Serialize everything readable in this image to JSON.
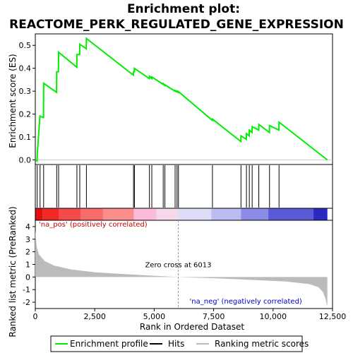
{
  "chart_data": {
    "type": "line",
    "title_line1": "Enrichment plot:",
    "title_line2": "REACTOME_PERK_REGULATED_GENE_EXPRESSION",
    "xlabel": "Rank in Ordered Dataset",
    "ylabel_top": "Enrichment score (ES)",
    "ylabel_bottom": "Ranked list metric (PreRanked)",
    "xlim": [
      0,
      12500
    ],
    "x_ticks": [
      0,
      2500,
      5000,
      7500,
      10000,
      12500
    ],
    "x_tick_labels": [
      "0",
      "2,500",
      "5,000",
      "7,500",
      "10,000",
      "12,500"
    ],
    "es_ylim": [
      -0.02,
      0.55
    ],
    "es_ticks": [
      0.0,
      0.1,
      0.2,
      0.3,
      0.4,
      0.5
    ],
    "es_tick_labels": [
      "0.0",
      "0.1",
      "0.2",
      "0.3",
      "0.4",
      "0.5"
    ],
    "metric_ylim": [
      -2.5,
      4.5
    ],
    "metric_ticks": [
      4,
      3,
      2,
      1,
      0,
      -1,
      -2
    ],
    "metric_tick_labels": [
      "4",
      "3",
      "2",
      "1",
      "0",
      "-1",
      "-2"
    ],
    "n_genes": 12284,
    "hits": [
      80,
      200,
      350,
      900,
      980,
      1750,
      1870,
      2150,
      4130,
      4170,
      4800,
      4900,
      5380,
      5450,
      5880,
      5960,
      6020,
      7450,
      8650,
      8880,
      9000,
      9120,
      9400,
      9850,
      10250
    ],
    "es_series": [
      [
        0,
        0.0
      ],
      [
        75,
        -0.005
      ],
      [
        80,
        0.02
      ],
      [
        195,
        0.195
      ],
      [
        200,
        0.19
      ],
      [
        345,
        0.185
      ],
      [
        350,
        0.335
      ],
      [
        895,
        0.295
      ],
      [
        900,
        0.385
      ],
      [
        975,
        0.385
      ],
      [
        980,
        0.47
      ],
      [
        1745,
        0.405
      ],
      [
        1750,
        0.46
      ],
      [
        1865,
        0.46
      ],
      [
        1870,
        0.505
      ],
      [
        2145,
        0.485
      ],
      [
        2150,
        0.53
      ],
      [
        4125,
        0.37
      ],
      [
        4130,
        0.385
      ],
      [
        4165,
        0.385
      ],
      [
        4170,
        0.4
      ],
      [
        4795,
        0.355
      ],
      [
        4800,
        0.365
      ],
      [
        4895,
        0.355
      ],
      [
        4900,
        0.362
      ],
      [
        5375,
        0.33
      ],
      [
        5380,
        0.333
      ],
      [
        5445,
        0.325
      ],
      [
        5450,
        0.328
      ],
      [
        5875,
        0.3
      ],
      [
        5880,
        0.303
      ],
      [
        5955,
        0.297
      ],
      [
        5960,
        0.3
      ],
      [
        6015,
        0.295
      ],
      [
        6020,
        0.298
      ],
      [
        7445,
        0.173
      ],
      [
        7450,
        0.178
      ],
      [
        8645,
        0.08
      ],
      [
        8650,
        0.105
      ],
      [
        8875,
        0.09
      ],
      [
        8880,
        0.115
      ],
      [
        8995,
        0.105
      ],
      [
        9000,
        0.13
      ],
      [
        9115,
        0.12
      ],
      [
        9120,
        0.145
      ],
      [
        9395,
        0.13
      ],
      [
        9400,
        0.155
      ],
      [
        9845,
        0.12
      ],
      [
        9850,
        0.15
      ],
      [
        10245,
        0.13
      ],
      [
        10250,
        0.165
      ],
      [
        12284,
        0.0
      ]
    ],
    "metric_series": [
      [
        0,
        3.7
      ],
      [
        60,
        2.4
      ],
      [
        150,
        1.8
      ],
      [
        400,
        1.25
      ],
      [
        800,
        0.9
      ],
      [
        1500,
        0.6
      ],
      [
        2500,
        0.38
      ],
      [
        4000,
        0.2
      ],
      [
        5000,
        0.1
      ],
      [
        6013,
        0.0
      ],
      [
        7500,
        -0.1
      ],
      [
        9000,
        -0.22
      ],
      [
        10500,
        -0.35
      ],
      [
        11500,
        -0.55
      ],
      [
        11900,
        -0.8
      ],
      [
        12100,
        -1.2
      ],
      [
        12200,
        -1.7
      ],
      [
        12260,
        -2.2
      ],
      [
        12284,
        -2.3
      ]
    ],
    "heatmap_bands": [
      {
        "x0": 0,
        "x1": 300,
        "color": "#e01010"
      },
      {
        "x0": 300,
        "x1": 1000,
        "color": "#f02828"
      },
      {
        "x0": 1000,
        "x1": 1900,
        "color": "#f54a4a"
      },
      {
        "x0": 1900,
        "x1": 2850,
        "color": "#f86c6c"
      },
      {
        "x0": 2850,
        "x1": 4150,
        "color": "#fa8e8e"
      },
      {
        "x0": 4150,
        "x1": 5100,
        "color": "#fbbcd9"
      },
      {
        "x0": 5100,
        "x1": 6013,
        "color": "#f5d8ea"
      },
      {
        "x0": 6013,
        "x1": 7400,
        "color": "#dcdcf6"
      },
      {
        "x0": 7400,
        "x1": 8650,
        "color": "#bcbcf0"
      },
      {
        "x0": 8650,
        "x1": 9800,
        "color": "#8c8ce6"
      },
      {
        "x0": 9800,
        "x1": 11700,
        "color": "#5a5ad6"
      },
      {
        "x0": 11700,
        "x1": 12284,
        "color": "#2a2ac0"
      }
    ],
    "annotations": {
      "pos": "'na_pos' (positively correlated)",
      "neg": "'na_neg' (negatively correlated)",
      "zero": "Zero cross at 6013",
      "zero_x": 6013
    },
    "legend": {
      "items": [
        {
          "label": "Enrichment profile",
          "color": "#00ee00"
        },
        {
          "label": "Hits",
          "color": "#000000"
        },
        {
          "label": "Ranking metric scores",
          "color": "#bbbbbb"
        }
      ]
    },
    "colors": {
      "es_line": "#00ee00",
      "pos_text": "#cc0000",
      "neg_text": "#0000cc",
      "metric_fill": "#bbbbbb",
      "grid": "#cccccc"
    }
  }
}
